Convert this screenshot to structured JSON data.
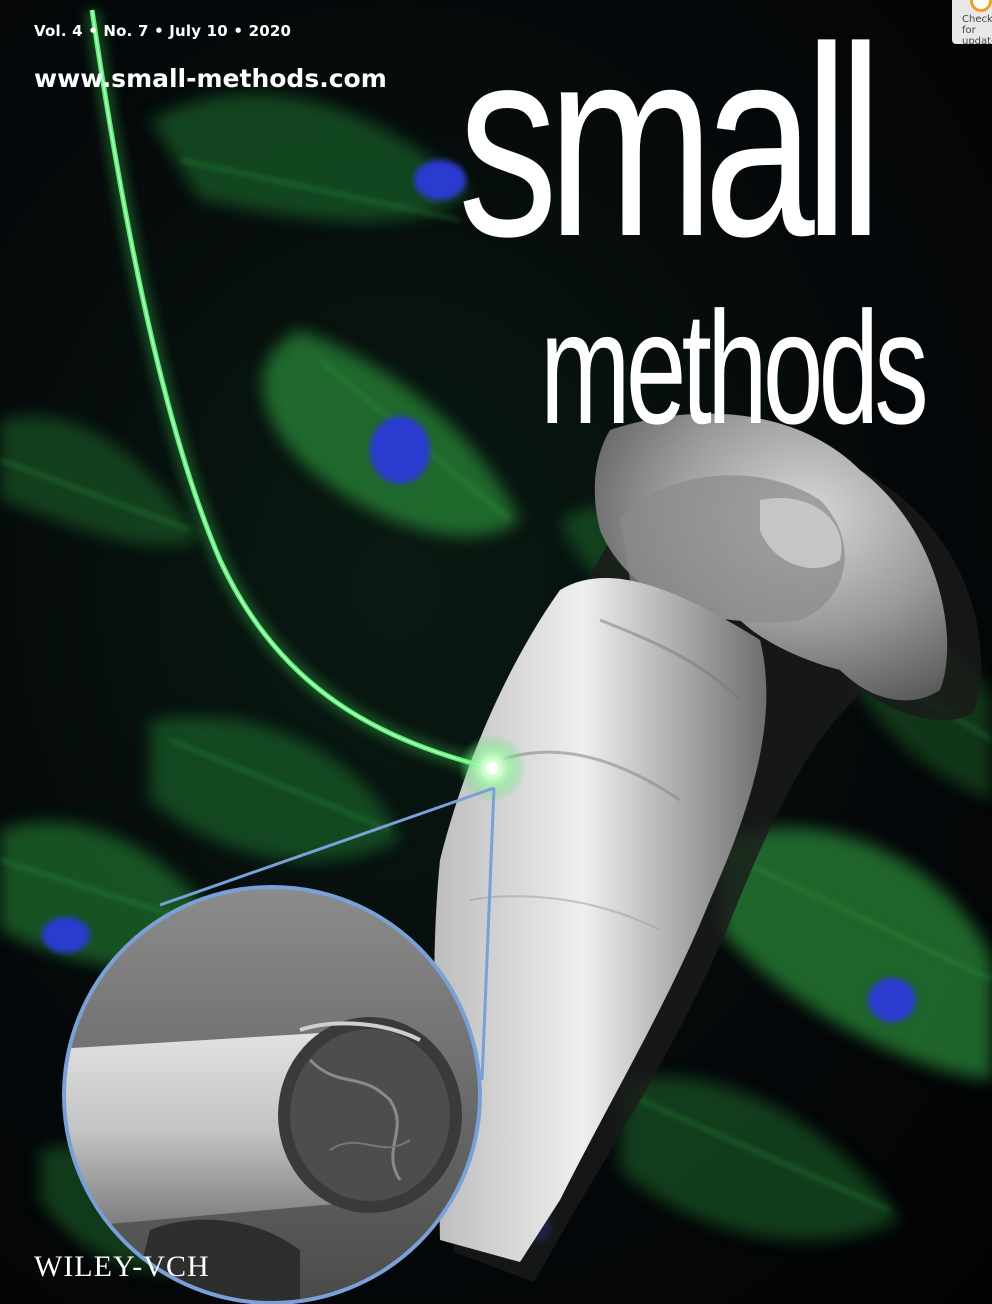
{
  "cover": {
    "issue_line": "Vol. 4 • No. 7 • July 10 • 2020",
    "website": "www.small-methods.com",
    "title_top": "small",
    "title_bottom": "methods",
    "publisher": "WILEY-VCH"
  },
  "badge": {
    "text": "Check for updates",
    "accent_color": "#f0a020"
  },
  "colors": {
    "fiber_green": "#3ddc5a",
    "cell_green": "#2a8a3a",
    "nucleus_blue": "#2a3ad0",
    "inset_border": "#7aa0d8",
    "bone_gray": "#b8b8b8"
  }
}
